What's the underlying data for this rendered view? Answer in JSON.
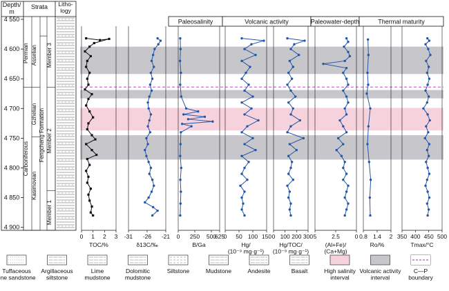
{
  "chart_data": {
    "type": "line",
    "depth_axis": {
      "label": "Depth/\nm",
      "range": [
        4550,
        4905
      ],
      "ticks": [
        4550,
        4600,
        4650,
        4700,
        4750,
        4800,
        4850,
        4900
      ]
    },
    "strata_header": "Strata",
    "lithology_header": "Litho-\nlogy",
    "strata": {
      "systems": [
        {
          "name": "Permian",
          "top": 4550,
          "bottom": 4664
        },
        {
          "name": "Carboniferous",
          "top": 4664,
          "bottom": 4905
        }
      ],
      "stages": [
        {
          "name": "Asselian",
          "top": 4550,
          "bottom": 4664
        },
        {
          "name": "Gzhelian",
          "top": 4664,
          "bottom": 4748
        },
        {
          "name": "Kasimovian",
          "top": 4748,
          "bottom": 4905
        }
      ],
      "formation": {
        "name": "Fengcheng Formation",
        "top": 4578,
        "bottom": 4905
      },
      "members": [
        {
          "name": "Member 3",
          "top": 4550,
          "bottom": 4664
        },
        {
          "name": "Member 2",
          "top": 4664,
          "bottom": 4838
        },
        {
          "name": "Member 1",
          "top": 4838,
          "bottom": 4905
        }
      ]
    },
    "categories": [
      "Paleosalinity",
      "Volcanic activity",
      "Paleowater-depth",
      "Thermal maturity"
    ],
    "intervals": [
      {
        "type": "volcanic",
        "top": 4596,
        "bottom": 4642
      },
      {
        "type": "volcanic",
        "top": 4669,
        "bottom": 4683
      },
      {
        "type": "salinity",
        "top": 4699,
        "bottom": 4737
      },
      {
        "type": "volcanic",
        "top": 4745,
        "bottom": 4786
      }
    ],
    "boundary_depth": 4664,
    "panels": [
      {
        "id": "toc",
        "xlabel": "TOC/%",
        "xlim": [
          0,
          3
        ],
        "ticks": [
          0,
          1,
          2,
          3
        ],
        "color": "#111111",
        "marker": "square",
        "points": [
          [
            0.4,
            4582
          ],
          [
            1.6,
            4585
          ],
          [
            2.4,
            4583
          ],
          [
            1.1,
            4590
          ],
          [
            0.7,
            4596
          ],
          [
            0.3,
            4604
          ],
          [
            0.8,
            4612
          ],
          [
            0.5,
            4620
          ],
          [
            0.4,
            4630
          ],
          [
            0.7,
            4640
          ],
          [
            0.5,
            4650
          ],
          [
            0.6,
            4660
          ],
          [
            0.3,
            4668
          ],
          [
            0.9,
            4676
          ],
          [
            0.6,
            4684
          ],
          [
            0.4,
            4695
          ],
          [
            0.7,
            4705
          ],
          [
            1.0,
            4715
          ],
          [
            0.6,
            4725
          ],
          [
            0.5,
            4735
          ],
          [
            0.9,
            4745
          ],
          [
            1.2,
            4752
          ],
          [
            0.4,
            4760
          ],
          [
            0.9,
            4770
          ],
          [
            1.3,
            4778
          ],
          [
            0.5,
            4785
          ],
          [
            0.7,
            4795
          ],
          [
            0.4,
            4805
          ],
          [
            0.6,
            4815
          ],
          [
            0.5,
            4825
          ],
          [
            0.8,
            4835
          ],
          [
            0.6,
            4845
          ],
          [
            0.7,
            4855
          ],
          [
            0.9,
            4865
          ],
          [
            0.8,
            4875
          ],
          [
            1.0,
            4880
          ]
        ]
      },
      {
        "id": "d13c",
        "xlabel": "δ13C/‰",
        "xlim": [
          -31,
          -21
        ],
        "ticks": [
          -31,
          -26,
          -21
        ],
        "color": "#2456a6",
        "marker": "circle",
        "points": [
          [
            -23.2,
            4582
          ],
          [
            -22.4,
            4586
          ],
          [
            -23.0,
            4592
          ],
          [
            -24.0,
            4600
          ],
          [
            -24.4,
            4610
          ],
          [
            -24.8,
            4620
          ],
          [
            -24.2,
            4630
          ],
          [
            -25.0,
            4640
          ],
          [
            -24.6,
            4650
          ],
          [
            -25.2,
            4660
          ],
          [
            -24.8,
            4670
          ],
          [
            -25.4,
            4680
          ],
          [
            -25.8,
            4690
          ],
          [
            -25.6,
            4700
          ],
          [
            -25.0,
            4710
          ],
          [
            -25.4,
            4720
          ],
          [
            -25.8,
            4730
          ],
          [
            -25.2,
            4740
          ],
          [
            -26.2,
            4750
          ],
          [
            -25.8,
            4760
          ],
          [
            -26.6,
            4770
          ],
          [
            -26.2,
            4780
          ],
          [
            -25.6,
            4790
          ],
          [
            -25.0,
            4800
          ],
          [
            -25.4,
            4810
          ],
          [
            -24.6,
            4820
          ],
          [
            -24.2,
            4830
          ],
          [
            -24.8,
            4840
          ],
          [
            -25.6,
            4850
          ],
          [
            -26.6,
            4858
          ],
          [
            -24.4,
            4866
          ],
          [
            -23.2,
            4872
          ],
          [
            -24.6,
            4880
          ]
        ]
      },
      {
        "id": "bga",
        "xlabel": "B/Ga",
        "xlim": [
          0,
          625
        ],
        "ticks": [
          0,
          250,
          500,
          625
        ],
        "color": "#2456a6",
        "marker": "circle",
        "points": [
          [
            30,
            4582
          ],
          [
            35,
            4600
          ],
          [
            28,
            4620
          ],
          [
            40,
            4640
          ],
          [
            30,
            4660
          ],
          [
            45,
            4680
          ],
          [
            120,
            4700
          ],
          [
            300,
            4705
          ],
          [
            80,
            4710
          ],
          [
            400,
            4714
          ],
          [
            150,
            4718
          ],
          [
            520,
            4722
          ],
          [
            60,
            4726
          ],
          [
            200,
            4730
          ],
          [
            40,
            4740
          ],
          [
            35,
            4760
          ],
          [
            30,
            4780
          ],
          [
            45,
            4800
          ],
          [
            32,
            4820
          ],
          [
            40,
            4840
          ],
          [
            35,
            4860
          ],
          [
            30,
            4880
          ]
        ]
      },
      {
        "id": "hg",
        "xlabel": "Hg/\n(10⁻⁹ mg·g⁻¹)",
        "xlim": [
          0,
          150
        ],
        "ticks": [
          0,
          50,
          100,
          150
        ],
        "color": "#2456a6",
        "marker": "circle",
        "points": [
          [
            60,
            4582
          ],
          [
            140,
            4586
          ],
          [
            95,
            4592
          ],
          [
            70,
            4600
          ],
          [
            110,
            4610
          ],
          [
            60,
            4620
          ],
          [
            90,
            4630
          ],
          [
            75,
            4640
          ],
          [
            60,
            4650
          ],
          [
            85,
            4660
          ],
          [
            70,
            4670
          ],
          [
            100,
            4680
          ],
          [
            60,
            4690
          ],
          [
            95,
            4700
          ],
          [
            70,
            4710
          ],
          [
            120,
            4720
          ],
          [
            80,
            4730
          ],
          [
            60,
            4740
          ],
          [
            100,
            4750
          ],
          [
            70,
            4760
          ],
          [
            110,
            4770
          ],
          [
            60,
            4780
          ],
          [
            85,
            4790
          ],
          [
            70,
            4800
          ],
          [
            60,
            4810
          ],
          [
            80,
            4820
          ],
          [
            55,
            4830
          ],
          [
            70,
            4840
          ],
          [
            60,
            4850
          ],
          [
            65,
            4860
          ],
          [
            60,
            4870
          ],
          [
            70,
            4880
          ]
        ]
      },
      {
        "id": "hgtoc",
        "xlabel": "Hg/TOC/\n(10⁻⁹ mg·g⁻¹)",
        "xlim": [
          0,
          300
        ],
        "ticks": [
          0,
          100,
          200,
          300
        ],
        "color": "#2456a6",
        "marker": "circle",
        "points": [
          [
            120,
            4582
          ],
          [
            270,
            4586
          ],
          [
            180,
            4592
          ],
          [
            150,
            4600
          ],
          [
            220,
            4610
          ],
          [
            140,
            4620
          ],
          [
            170,
            4630
          ],
          [
            130,
            4640
          ],
          [
            160,
            4650
          ],
          [
            120,
            4660
          ],
          [
            150,
            4670
          ],
          [
            190,
            4680
          ],
          [
            130,
            4690
          ],
          [
            170,
            4700
          ],
          [
            150,
            4710
          ],
          [
            230,
            4720
          ],
          [
            150,
            4730
          ],
          [
            120,
            4740
          ],
          [
            260,
            4750
          ],
          [
            140,
            4760
          ],
          [
            200,
            4770
          ],
          [
            130,
            4780
          ],
          [
            160,
            4790
          ],
          [
            150,
            4800
          ],
          [
            130,
            4810
          ],
          [
            170,
            4820
          ],
          [
            120,
            4830
          ],
          [
            140,
            4840
          ],
          [
            130,
            4850
          ],
          [
            150,
            4860
          ],
          [
            140,
            4870
          ],
          [
            150,
            4880
          ]
        ]
      },
      {
        "id": "alfe",
        "xlabel": "(Al+Fe)/\n(Ca+Mg)",
        "xlim": [
          5.0,
          0
        ],
        "ticks": [
          5.0,
          2.5,
          0
        ],
        "color": "#2456a6",
        "marker": "circle",
        "points": [
          [
            1.2,
            4582
          ],
          [
            1.0,
            4588
          ],
          [
            1.5,
            4596
          ],
          [
            1.0,
            4605
          ],
          [
            0.8,
            4612
          ],
          [
            1.4,
            4620
          ],
          [
            4.0,
            4625
          ],
          [
            1.2,
            4632
          ],
          [
            1.6,
            4640
          ],
          [
            1.2,
            4650
          ],
          [
            1.0,
            4660
          ],
          [
            1.6,
            4670
          ],
          [
            1.2,
            4680
          ],
          [
            1.0,
            4690
          ],
          [
            1.4,
            4700
          ],
          [
            1.2,
            4710
          ],
          [
            2.0,
            4720
          ],
          [
            1.6,
            4730
          ],
          [
            1.2,
            4740
          ],
          [
            2.2,
            4750
          ],
          [
            1.6,
            4760
          ],
          [
            2.4,
            4770
          ],
          [
            1.8,
            4780
          ],
          [
            1.4,
            4790
          ],
          [
            1.6,
            4800
          ],
          [
            1.2,
            4810
          ],
          [
            1.6,
            4820
          ],
          [
            1.0,
            4830
          ],
          [
            1.2,
            4840
          ],
          [
            1.4,
            4850
          ],
          [
            1.0,
            4860
          ],
          [
            1.2,
            4870
          ],
          [
            1.4,
            4880
          ]
        ]
      },
      {
        "id": "ro",
        "xlabel": "Ro/%",
        "xlim": [
          0.8,
          2.0
        ],
        "ticks": [
          0.8,
          1.4,
          2.0
        ],
        "color": "#2456a6",
        "marker": "circle",
        "points": [
          [
            1.0,
            4584
          ],
          [
            1.02,
            4610
          ],
          [
            0.98,
            4640
          ],
          [
            1.01,
            4660
          ],
          [
            0.95,
            4675
          ],
          [
            1.1,
            4700
          ],
          [
            1.02,
            4730
          ],
          [
            0.98,
            4760
          ],
          [
            1.05,
            4790
          ],
          [
            1.12,
            4820
          ],
          [
            1.08,
            4850
          ],
          [
            1.1,
            4880
          ]
        ]
      },
      {
        "id": "tmax",
        "xlabel": "Tmax/°C",
        "xlim": [
          350,
          500
        ],
        "ticks": [
          350,
          400,
          450,
          500
        ],
        "color": "#2456a6",
        "marker": "circle",
        "points": [
          [
            445,
            4582
          ],
          [
            452,
            4586
          ],
          [
            438,
            4592
          ],
          [
            448,
            4600
          ],
          [
            456,
            4610
          ],
          [
            440,
            4620
          ],
          [
            450,
            4630
          ],
          [
            444,
            4640
          ],
          [
            452,
            4650
          ],
          [
            446,
            4660
          ],
          [
            438,
            4670
          ],
          [
            450,
            4680
          ],
          [
            444,
            4690
          ],
          [
            430,
            4700
          ],
          [
            446,
            4710
          ],
          [
            454,
            4720
          ],
          [
            440,
            4730
          ],
          [
            448,
            4740
          ],
          [
            436,
            4750
          ],
          [
            452,
            4760
          ],
          [
            444,
            4770
          ],
          [
            450,
            4780
          ],
          [
            440,
            4790
          ],
          [
            446,
            4800
          ],
          [
            452,
            4810
          ],
          [
            444,
            4820
          ],
          [
            438,
            4830
          ],
          [
            446,
            4840
          ],
          [
            452,
            4850
          ],
          [
            444,
            4860
          ],
          [
            450,
            4870
          ],
          [
            446,
            4880
          ]
        ]
      }
    ],
    "legend": [
      {
        "label": "Tuffaceous\nfine sandstone",
        "swatch": "lith-sand"
      },
      {
        "label": "Argillaceous\nsiltstone",
        "swatch": "lith-argsilt"
      },
      {
        "label": "Lime\nmudstone",
        "swatch": "lith-lime"
      },
      {
        "label": "Dolomitic\nmudstone",
        "swatch": "lith-dolo"
      },
      {
        "label": "Siltstone",
        "swatch": "lith-silt"
      },
      {
        "label": "Mudstone",
        "swatch": "lith-mud"
      },
      {
        "label": "Andesite",
        "swatch": "lith-andesite"
      },
      {
        "label": "Basalt",
        "swatch": "lith-basalt"
      },
      {
        "label": "High salinity\ninterval",
        "swatch": "pink"
      },
      {
        "label": "Volcanic activity\ninterval",
        "swatch": "gray"
      },
      {
        "label": "C—P\nboundary",
        "swatch": "dashed"
      }
    ],
    "colors": {
      "salinity": "#f6d3dc",
      "volcanic": "#c7c6cb",
      "boundary": "#c04ec0",
      "series": "#2456a6",
      "toc": "#111111"
    }
  }
}
